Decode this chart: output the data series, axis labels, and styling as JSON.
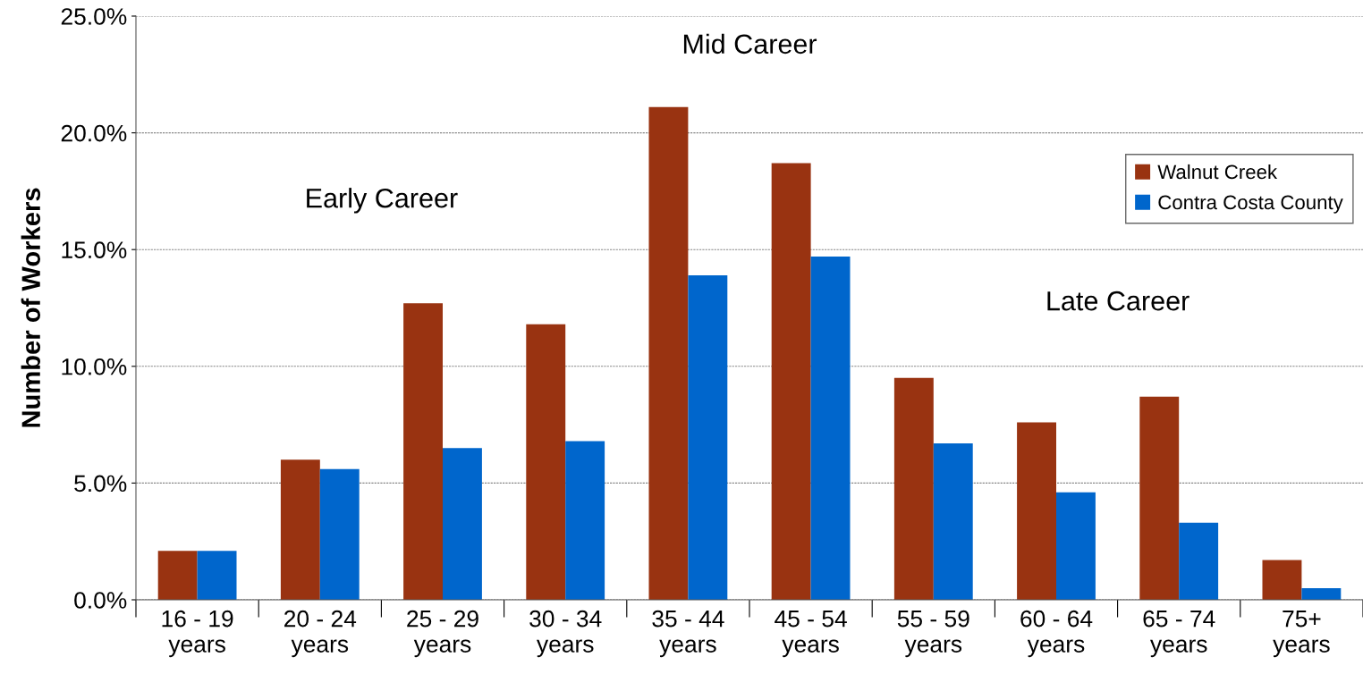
{
  "chart_data": {
    "type": "bar",
    "ylabel": "Number of Workers",
    "categories": [
      "16 - 19\nyears",
      "20 - 24\nyears",
      "25 - 29\nyears",
      "30 - 34\nyears",
      "35 - 44\nyears",
      "45 - 54\nyears",
      "55 - 59\nyears",
      "60 - 64\nyears",
      "65 - 74\nyears",
      "75+\nyears"
    ],
    "series": [
      {
        "name": "Walnut Creek",
        "color": "#993311",
        "values": [
          2.1,
          6.0,
          12.7,
          11.8,
          21.1,
          18.7,
          9.5,
          7.6,
          8.7,
          1.7
        ]
      },
      {
        "name": "Contra Costa County",
        "color": "#0066cc",
        "values": [
          2.1,
          5.6,
          6.5,
          6.8,
          13.9,
          14.7,
          6.7,
          4.6,
          3.3,
          0.5
        ]
      }
    ],
    "ylim": [
      0,
      25
    ],
    "yticks": [
      {
        "value": 0,
        "label": "0.0%"
      },
      {
        "value": 5,
        "label": "5.0%"
      },
      {
        "value": 10,
        "label": "10.0%"
      },
      {
        "value": 15,
        "label": "15.0%"
      },
      {
        "value": 20,
        "label": "20.0%"
      },
      {
        "value": 25,
        "label": "25.0%"
      }
    ],
    "grid": "y",
    "legend": "top right",
    "annotations": [
      "Early Career",
      "Mid Career",
      "Late Career"
    ]
  }
}
